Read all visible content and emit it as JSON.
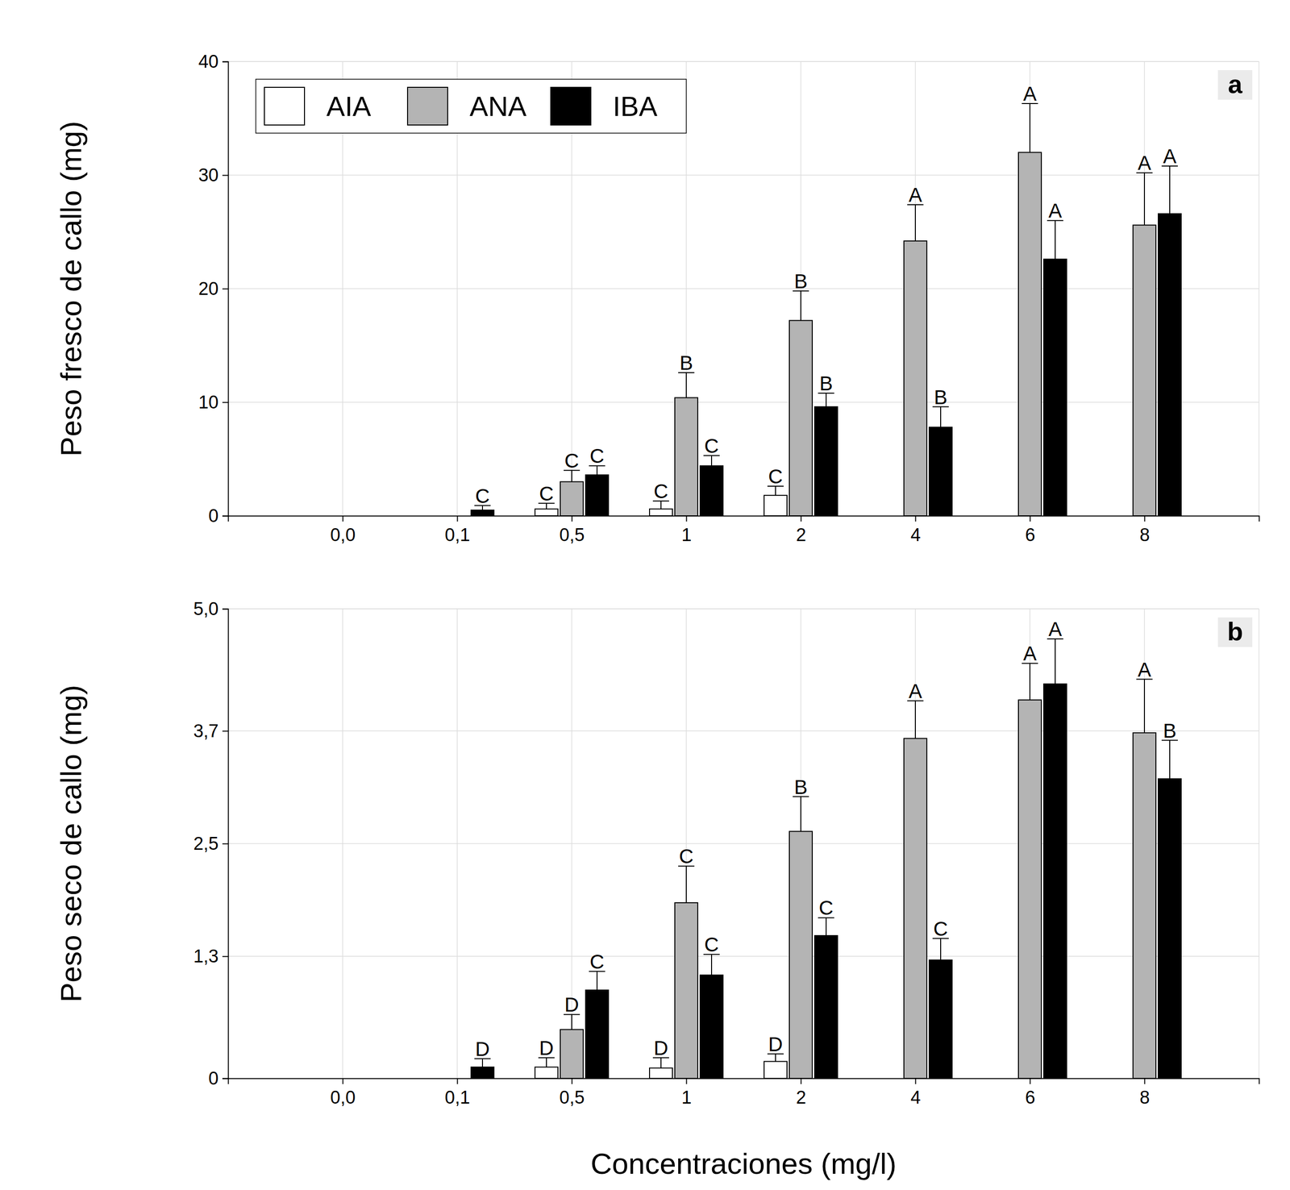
{
  "chart_data": [
    {
      "type": "bar",
      "title": "a",
      "y_label": "Peso fresco de callo (mg)",
      "categories": [
        "0,0",
        "0,1",
        "0,5",
        "1",
        "2",
        "4",
        "6",
        "8"
      ],
      "ylim": [
        0,
        40
      ],
      "yticks": [
        0,
        10,
        20,
        30,
        40
      ],
      "grid": true,
      "legend": "upper left",
      "series": [
        {
          "name": "AIA",
          "color": "#ffffff",
          "values": [
            0,
            0,
            0.6,
            0.6,
            1.8,
            0,
            0,
            0
          ],
          "errors": [
            null,
            null,
            0.5,
            0.7,
            0.8,
            null,
            null,
            null
          ],
          "letters": [
            null,
            null,
            "C",
            "C",
            "C",
            null,
            null,
            null
          ]
        },
        {
          "name": "ANA",
          "color": "#b4b4b4",
          "values": [
            0,
            0,
            3.0,
            10.4,
            17.2,
            24.2,
            32.0,
            25.6
          ],
          "errors": [
            null,
            null,
            1.0,
            2.2,
            2.6,
            3.2,
            4.3,
            4.6
          ],
          "letters": [
            null,
            null,
            "C",
            "B",
            "B",
            "A",
            "A",
            "A"
          ]
        },
        {
          "name": "IBA",
          "color": "#000000",
          "values": [
            0,
            0.5,
            3.6,
            4.4,
            9.6,
            7.8,
            22.6,
            26.6
          ],
          "errors": [
            null,
            0.4,
            0.8,
            0.9,
            1.2,
            1.8,
            3.4,
            4.2
          ],
          "letters": [
            null,
            "C",
            "C",
            "C",
            "B",
            "B",
            "A",
            "A"
          ]
        }
      ]
    },
    {
      "type": "bar",
      "title": "b",
      "y_label": "Peso seco de callo (mg)",
      "x_label": "Concentraciones (mg/l)",
      "categories": [
        "0,0",
        "0,1",
        "0,5",
        "1",
        "2",
        "4",
        "6",
        "8"
      ],
      "ylim": [
        0,
        5
      ],
      "yticks": [
        0,
        {
          "value": 1.3,
          "label": "1,3"
        },
        {
          "value": 2.5,
          "label": "2,5"
        },
        {
          "value": 3.7,
          "label": "3,7"
        },
        {
          "value": 5,
          "label": "5,0"
        }
      ],
      "grid": true,
      "series": [
        {
          "color": "#ffffff",
          "values": [
            0,
            0,
            0.12,
            0.11,
            0.18,
            0,
            0,
            0
          ],
          "errors": [
            null,
            null,
            0.1,
            0.11,
            0.08,
            null,
            null,
            null
          ],
          "letters": [
            null,
            null,
            "D",
            "D",
            "D",
            null,
            null,
            null
          ]
        },
        {
          "color": "#b4b4b4",
          "values": [
            0,
            0,
            0.52,
            1.87,
            2.63,
            3.62,
            4.03,
            3.68
          ],
          "errors": [
            null,
            null,
            0.16,
            0.39,
            0.37,
            0.4,
            0.39,
            0.57
          ],
          "letters": [
            null,
            null,
            "D",
            "C",
            "B",
            "A",
            "A",
            "A"
          ]
        },
        {
          "color": "#000000",
          "values": [
            0,
            0.12,
            0.94,
            1.1,
            1.52,
            1.26,
            4.2,
            3.19
          ],
          "errors": [
            null,
            0.09,
            0.2,
            0.22,
            0.19,
            0.23,
            0.48,
            0.41
          ],
          "letters": [
            null,
            "D",
            "C",
            "C",
            "C",
            "C",
            "A",
            "B"
          ]
        }
      ]
    }
  ]
}
